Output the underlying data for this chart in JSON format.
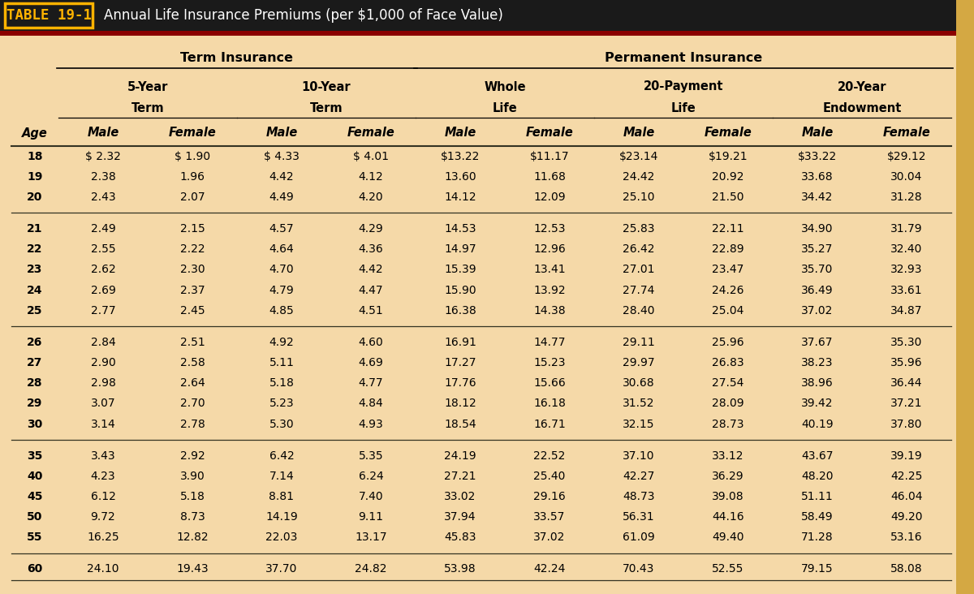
{
  "title_tag": "TABLE 19-1",
  "title_text": "Annual Life Insurance Premiums (per $1,000 of Face Value)",
  "bg_color": "#F5D9A8",
  "header_bg": "#1A1A1A",
  "header_tag_color": "#FFB300",
  "dark_red": "#8B0000",
  "right_border_color": "#D4A843",
  "line_color": "#333322",
  "rows": [
    [
      18,
      "$ 2.32",
      "$ 1.90",
      "$ 4.33",
      "$ 4.01",
      "$13.22",
      "$11.17",
      "$23.14",
      "$19.21",
      "$33.22",
      "$29.12"
    ],
    [
      19,
      "2.38",
      "1.96",
      "4.42",
      "4.12",
      "13.60",
      "11.68",
      "24.42",
      "20.92",
      "33.68",
      "30.04"
    ],
    [
      20,
      "2.43",
      "2.07",
      "4.49",
      "4.20",
      "14.12",
      "12.09",
      "25.10",
      "21.50",
      "34.42",
      "31.28"
    ],
    [
      21,
      "2.49",
      "2.15",
      "4.57",
      "4.29",
      "14.53",
      "12.53",
      "25.83",
      "22.11",
      "34.90",
      "31.79"
    ],
    [
      22,
      "2.55",
      "2.22",
      "4.64",
      "4.36",
      "14.97",
      "12.96",
      "26.42",
      "22.89",
      "35.27",
      "32.40"
    ],
    [
      23,
      "2.62",
      "2.30",
      "4.70",
      "4.42",
      "15.39",
      "13.41",
      "27.01",
      "23.47",
      "35.70",
      "32.93"
    ],
    [
      24,
      "2.69",
      "2.37",
      "4.79",
      "4.47",
      "15.90",
      "13.92",
      "27.74",
      "24.26",
      "36.49",
      "33.61"
    ],
    [
      25,
      "2.77",
      "2.45",
      "4.85",
      "4.51",
      "16.38",
      "14.38",
      "28.40",
      "25.04",
      "37.02",
      "34.87"
    ],
    [
      26,
      "2.84",
      "2.51",
      "4.92",
      "4.60",
      "16.91",
      "14.77",
      "29.11",
      "25.96",
      "37.67",
      "35.30"
    ],
    [
      27,
      "2.90",
      "2.58",
      "5.11",
      "4.69",
      "17.27",
      "15.23",
      "29.97",
      "26.83",
      "38.23",
      "35.96"
    ],
    [
      28,
      "2.98",
      "2.64",
      "5.18",
      "4.77",
      "17.76",
      "15.66",
      "30.68",
      "27.54",
      "38.96",
      "36.44"
    ],
    [
      29,
      "3.07",
      "2.70",
      "5.23",
      "4.84",
      "18.12",
      "16.18",
      "31.52",
      "28.09",
      "39.42",
      "37.21"
    ],
    [
      30,
      "3.14",
      "2.78",
      "5.30",
      "4.93",
      "18.54",
      "16.71",
      "32.15",
      "28.73",
      "40.19",
      "37.80"
    ],
    [
      35,
      "3.43",
      "2.92",
      "6.42",
      "5.35",
      "24.19",
      "22.52",
      "37.10",
      "33.12",
      "43.67",
      "39.19"
    ],
    [
      40,
      "4.23",
      "3.90",
      "7.14",
      "6.24",
      "27.21",
      "25.40",
      "42.27",
      "36.29",
      "48.20",
      "42.25"
    ],
    [
      45,
      "6.12",
      "5.18",
      "8.81",
      "7.40",
      "33.02",
      "29.16",
      "48.73",
      "39.08",
      "51.11",
      "46.04"
    ],
    [
      50,
      "9.72",
      "8.73",
      "14.19",
      "9.11",
      "37.94",
      "33.57",
      "56.31",
      "44.16",
      "58.49",
      "49.20"
    ],
    [
      55,
      "16.25",
      "12.82",
      "22.03",
      "13.17",
      "45.83",
      "37.02",
      "61.09",
      "49.40",
      "71.28",
      "53.16"
    ],
    [
      60,
      "24.10",
      "19.43",
      "37.70",
      "24.82",
      "53.98",
      "42.24",
      "70.43",
      "52.55",
      "79.15",
      "58.08"
    ]
  ],
  "group_sep_after": [
    2,
    7,
    12,
    17
  ],
  "font_size": 9.5,
  "header_font_size": 10.5,
  "subgroup_font_size": 10.5,
  "data_font_size": 10.0
}
